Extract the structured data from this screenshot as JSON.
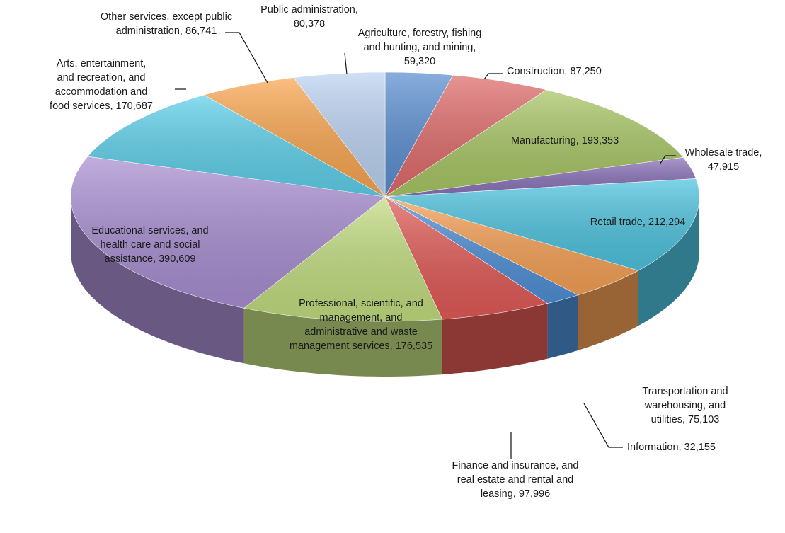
{
  "chart_data": {
    "type": "pie",
    "title": "",
    "legend": "none",
    "slices": [
      {
        "name": "Agriculture, forestry, fishing and hunting, and mining",
        "value": 59320,
        "color": "#5b8fd0",
        "label_lines": [
          "Agriculture, forestry, fishing",
          "and hunting, and mining,",
          "59,320"
        ]
      },
      {
        "name": "Construction",
        "value": 87250,
        "color": "#e06b6b",
        "label_lines": [
          "Construction, 87,250"
        ]
      },
      {
        "name": "Manufacturing",
        "value": 193353,
        "color": "#a8c665",
        "label_lines": [
          "Manufacturing, 193,353"
        ]
      },
      {
        "name": "Wholesale trade",
        "value": 47915,
        "color": "#8a72b8",
        "label_lines": [
          "Wholesale trade,",
          "47,915"
        ]
      },
      {
        "name": "Retail trade",
        "value": 212294,
        "color": "#4ec3de",
        "label_lines": [
          "Retail trade, 212,294"
        ]
      },
      {
        "name": "Transportation and warehousing, and utilities",
        "value": 75103,
        "color": "#f5a055",
        "label_lines": [
          "Transportation and",
          "warehousing, and",
          "utilities, 75,103"
        ]
      },
      {
        "name": "Information",
        "value": 32155,
        "color": "#4f8fd6",
        "label_lines": [
          "Information, 32,155"
        ]
      },
      {
        "name": "Finance and insurance, and real estate and rental and leasing",
        "value": 97996,
        "color": "#e05a56",
        "label_lines": [
          "Finance and insurance, and",
          "real estate and rental and",
          "leasing, 97,996"
        ]
      },
      {
        "name": "Professional, scientific, and management, and administrative and waste management services",
        "value": 176535,
        "color": "#c2dd80",
        "label_lines": [
          "Professional, scientific, and",
          "management, and",
          "administrative and waste",
          "management services, 176,535"
        ]
      },
      {
        "name": "Educational services, and health care and social assistance",
        "value": 390609,
        "color": "#a98fd2",
        "label_lines": [
          "Educational services, and",
          "health care and social",
          "assistance, 390,609"
        ]
      },
      {
        "name": "Arts, entertainment, and recreation, and accommodation and food services",
        "value": 170687,
        "color": "#5fd0ea",
        "label_lines": [
          "Arts, entertainment,",
          "and recreation, and",
          "accommodation and",
          "food services, 170,687"
        ]
      },
      {
        "name": "Other services, except public administration",
        "value": 86741,
        "color": "#f9a650",
        "label_lines": [
          "Other services, except public",
          "administration, 86,741"
        ]
      },
      {
        "name": "Public administration",
        "value": 80378,
        "color": "#bcd3f2",
        "label_lines": [
          "Public administration,",
          "80,378"
        ]
      }
    ]
  }
}
